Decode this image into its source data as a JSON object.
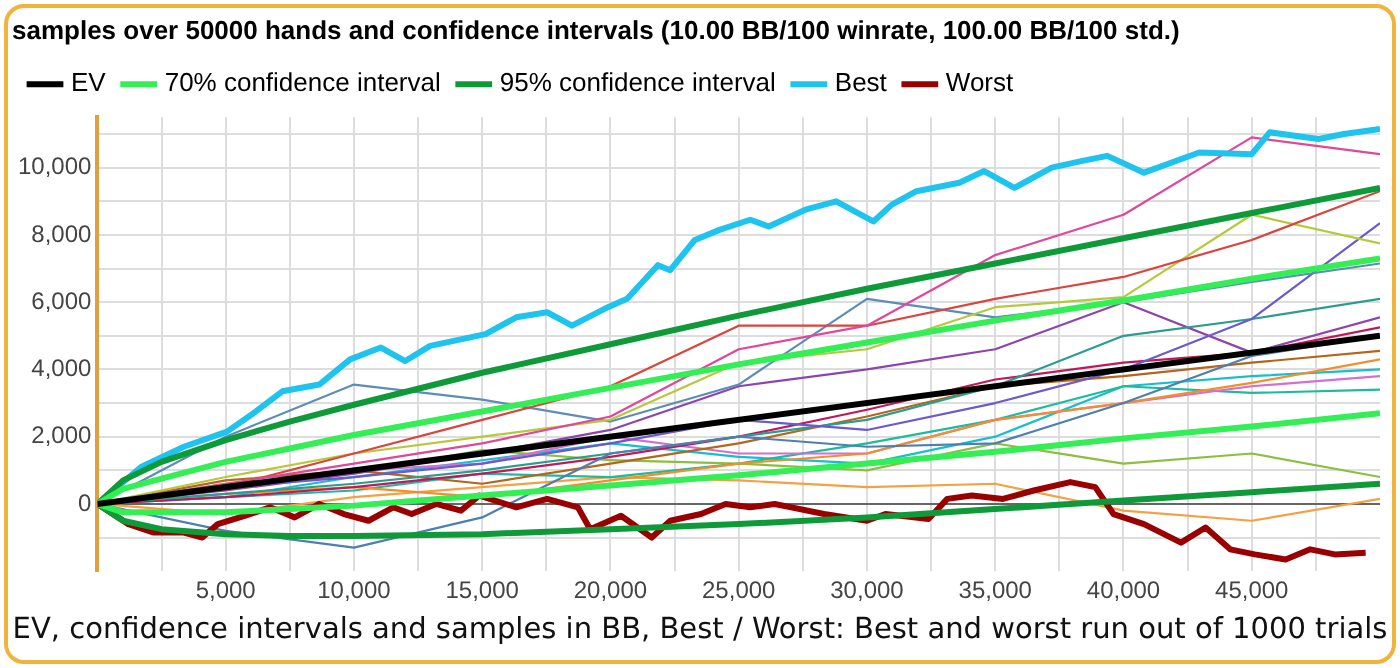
{
  "chart_data": {
    "type": "line",
    "title": "samples over 50000 hands and confidence intervals (10.00 BB/100 winrate, 100.00 BB/100 std.)",
    "annotations": [
      "EV, confidence intervals and samples in BB, Best / Worst: Best and worst run out of 1000 trials"
    ],
    "x": [
      0,
      5000,
      10000,
      15000,
      20000,
      25000,
      30000,
      35000,
      40000,
      45000,
      50000
    ],
    "xlim": [
      0,
      50000
    ],
    "xticks": [
      {
        "value": 2500,
        "label": null
      },
      {
        "value": 5000,
        "label": "5,000"
      },
      {
        "value": 7500,
        "label": null
      },
      {
        "value": 10000,
        "label": "10,000"
      },
      {
        "value": 12500,
        "label": null
      },
      {
        "value": 15000,
        "label": "15,000"
      },
      {
        "value": 17500,
        "label": null
      },
      {
        "value": 20000,
        "label": "20,000"
      },
      {
        "value": 22500,
        "label": null
      },
      {
        "value": 25000,
        "label": "25,000"
      },
      {
        "value": 27500,
        "label": null
      },
      {
        "value": 30000,
        "label": "30,000"
      },
      {
        "value": 32500,
        "label": null
      },
      {
        "value": 35000,
        "label": "35,000"
      },
      {
        "value": 37500,
        "label": null
      },
      {
        "value": 40000,
        "label": "40,000"
      },
      {
        "value": 42500,
        "label": null
      },
      {
        "value": 45000,
        "label": "45,000"
      },
      {
        "value": 47500,
        "label": null
      }
    ],
    "ylim": [
      -2000,
      11500
    ],
    "yticks": [
      {
        "value": -1000,
        "label": null
      },
      0,
      {
        "value": 1000,
        "label": null
      },
      {
        "value": 2000,
        "label": "2,000"
      },
      {
        "value": 3000,
        "label": null
      },
      {
        "value": 4000,
        "label": "4,000"
      },
      {
        "value": 5000,
        "label": null
      },
      {
        "value": 6000,
        "label": "6,000"
      },
      {
        "value": 7000,
        "label": null
      },
      {
        "value": 8000,
        "label": "8,000"
      },
      {
        "value": 9000,
        "label": null
      },
      {
        "value": 10000,
        "label": "10,000"
      },
      {
        "value": 11000,
        "label": null
      }
    ],
    "grid": true,
    "legend": "top",
    "marker": "none",
    "line_style": "solid",
    "ref_lines": [
      {
        "axis": "y",
        "value": 0,
        "color": "#666666"
      }
    ],
    "series": [
      {
        "color": "#e0479b",
        "values": [
          0,
          600,
          1200,
          1800,
          2600,
          4600,
          5300,
          7400,
          8600,
          10900,
          10400
        ]
      },
      {
        "color": "#d9453d",
        "values": [
          0,
          500,
          1500,
          2500,
          3500,
          5300,
          5300,
          6100,
          6750,
          7850,
          9300
        ]
      },
      {
        "color": "#b5c93a",
        "values": [
          0,
          800,
          1500,
          2000,
          2500,
          4200,
          4600,
          5850,
          6150,
          8600,
          7750
        ]
      },
      {
        "color": "#5b8db8",
        "values": [
          0,
          2000,
          3550,
          3100,
          2450,
          3550,
          6100,
          5550,
          6000,
          6600,
          7150
        ]
      },
      {
        "color": "#4f7eb0",
        "values": [
          0,
          -800,
          -1300,
          -400,
          1500,
          2000,
          1700,
          1800,
          3000,
          4400,
          5000
        ]
      },
      {
        "color": "#6a5acd",
        "values": [
          0,
          500,
          800,
          1200,
          1800,
          2500,
          2200,
          3000,
          4000,
          5500,
          8350
        ]
      },
      {
        "color": "#2a9d8f",
        "values": [
          0,
          300,
          600,
          1000,
          1500,
          2000,
          2500,
          3500,
          5000,
          5500,
          6100
        ]
      },
      {
        "color": "#8e44ad",
        "values": [
          0,
          400,
          900,
          1500,
          2200,
          3500,
          4000,
          4600,
          6000,
          4500,
          5550
        ]
      },
      {
        "color": "#c2185b",
        "values": [
          0,
          200,
          500,
          900,
          1400,
          2000,
          2800,
          3700,
          4200,
          4500,
          5250
        ]
      },
      {
        "color": "#b5651d",
        "values": [
          0,
          700,
          1000,
          600,
          1200,
          1800,
          2600,
          3500,
          3800,
          4200,
          4550
        ]
      },
      {
        "color": "#f28e2b",
        "values": [
          0,
          300,
          500,
          200,
          700,
          1200,
          1500,
          2500,
          3000,
          3600,
          4300
        ]
      },
      {
        "color": "#d36fd0",
        "values": [
          0,
          500,
          1000,
          1200,
          2000,
          1500,
          1500,
          2500,
          3000,
          3500,
          3800
        ]
      },
      {
        "color": "#1abc9c",
        "values": [
          0,
          200,
          400,
          900,
          800,
          1200,
          1800,
          2500,
          3500,
          3300,
          3400
        ]
      },
      {
        "color": "#8cbf3f",
        "values": [
          0,
          600,
          900,
          1600,
          1300,
          1200,
          1000,
          1800,
          1200,
          1500,
          800
        ]
      },
      {
        "color": "#f5a142",
        "values": [
          0,
          -300,
          200,
          500,
          800,
          700,
          500,
          600,
          -200,
          -500,
          150
        ]
      },
      {
        "color": "#17becf",
        "values": [
          0,
          200,
          800,
          1300,
          1800,
          1400,
          1200,
          2000,
          3500,
          3800,
          4000
        ]
      },
      {
        "name": "EV",
        "color": "#000000",
        "x": [
          0,
          50000
        ],
        "values": [
          0,
          5000
        ]
      },
      {
        "name": "70% confidence interval",
        "color": "#33ee55",
        "x": [
          0,
          1000,
          2500,
          5000,
          7500,
          10000,
          15000,
          20000,
          25000,
          30000,
          35000,
          40000,
          45000,
          50000
        ],
        "values": [
          0,
          450,
          750,
          1250,
          1650,
          2050,
          2750,
          3450,
          4150,
          4800,
          5450,
          6050,
          6700,
          7300
        ]
      },
      {
        "color": "#33ee55",
        "x": [
          0,
          1000,
          2500,
          5000,
          7500,
          10000,
          15000,
          20000,
          25000,
          30000,
          35000,
          40000,
          45000,
          50000
        ],
        "values": [
          0,
          -250,
          -250,
          -250,
          -150,
          -50,
          250,
          550,
          850,
          1200,
          1550,
          1950,
          2300,
          2700
        ]
      },
      {
        "name": "95% confidence interval",
        "color": "#0f9a3a",
        "x": [
          0,
          1000,
          2500,
          5000,
          7500,
          10000,
          15000,
          20000,
          25000,
          30000,
          35000,
          40000,
          45000,
          50000
        ],
        "values": [
          0,
          700,
          1250,
          1900,
          2450,
          2950,
          3900,
          4750,
          5600,
          6400,
          7150,
          7900,
          8650,
          9400
        ]
      },
      {
        "color": "#0f9a3a",
        "x": [
          0,
          1000,
          2500,
          5000,
          7500,
          10000,
          15000,
          20000,
          25000,
          30000,
          35000,
          40000,
          45000,
          50000
        ],
        "values": [
          0,
          -500,
          -750,
          -900,
          -950,
          -950,
          -900,
          -750,
          -600,
          -400,
          -150,
          100,
          350,
          600
        ]
      },
      {
        "name": "Best",
        "color": "#1ec3ee",
        "x": [
          0,
          1700,
          3370,
          5050,
          6000,
          7210,
          8650,
          9850,
          11050,
          12000,
          12970,
          15130,
          16330,
          17530,
          18500,
          19900,
          20650,
          21850,
          22330,
          23290,
          24250,
          25450,
          26170,
          27600,
          28800,
          30250,
          30970,
          31930,
          33600,
          34570,
          35750,
          37200,
          38400,
          39370,
          40800,
          42950,
          45000,
          45700,
          47600,
          48600,
          50000
        ],
        "values": [
          0,
          1100,
          1700,
          2150,
          2650,
          3350,
          3550,
          4300,
          4650,
          4250,
          4700,
          5050,
          5550,
          5700,
          5300,
          5850,
          6100,
          7100,
          6950,
          7850,
          8150,
          8450,
          8250,
          8750,
          9000,
          8400,
          8900,
          9300,
          9550,
          9900,
          9400,
          10000,
          10200,
          10350,
          9850,
          10450,
          10400,
          11050,
          10850,
          11000,
          11150
        ]
      },
      {
        "name": "Worst",
        "color": "#990000",
        "x": [
          0,
          1210,
          2170,
          3370,
          4090,
          4690,
          5770,
          6730,
          7690,
          8650,
          9610,
          10570,
          11530,
          12250,
          13210,
          14170,
          14890,
          16330,
          17530,
          18730,
          19210,
          20410,
          21610,
          22330,
          23530,
          24490,
          25450,
          26400,
          28330,
          30000,
          30720,
          32400,
          33130,
          34090,
          35300,
          36500,
          37930,
          38900,
          39610,
          40800,
          42240,
          43200,
          44160,
          45120,
          46320,
          47280,
          48240,
          49440
        ],
        "values": [
          0,
          -600,
          -850,
          -850,
          -1000,
          -600,
          -350,
          -100,
          -400,
          0,
          -300,
          -500,
          -100,
          -300,
          0,
          -200,
          250,
          -100,
          150,
          -100,
          -750,
          -350,
          -1000,
          -500,
          -300,
          0,
          -100,
          0,
          -300,
          -500,
          -300,
          -450,
          150,
          250,
          150,
          400,
          650,
          500,
          -300,
          -600,
          -1150,
          -700,
          -1350,
          -1500,
          -1650,
          -1350,
          -1500,
          -1450
        ]
      }
    ]
  }
}
